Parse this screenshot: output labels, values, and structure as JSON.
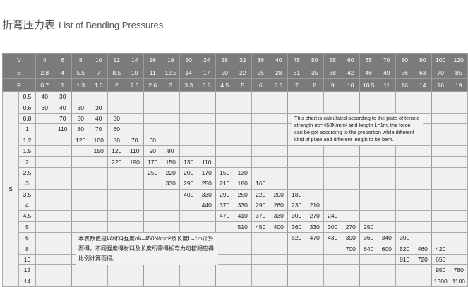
{
  "title": {
    "zh": "折弯压力表",
    "en": "List of Bending Pressures"
  },
  "header_rows": [
    {
      "label": "V",
      "values": [
        "4",
        "6",
        "8",
        "10",
        "12",
        "14",
        "16",
        "18",
        "20",
        "24",
        "28",
        "32",
        "36",
        "40",
        "45",
        "50",
        "55",
        "60",
        "65",
        "70",
        "80",
        "90",
        "100",
        "120"
      ]
    },
    {
      "label": "B",
      "values": [
        "2.8",
        "4",
        "5.5",
        "7",
        "8.5",
        "10",
        "11",
        "12.5",
        "14",
        "17",
        "20",
        "22",
        "25",
        "28",
        "31",
        "35",
        "38",
        "42",
        "46",
        "49",
        "56",
        "63",
        "70",
        "85"
      ]
    },
    {
      "label": "R",
      "values": [
        "0.7",
        "1",
        "1.3",
        "1.6",
        "2",
        "2.3",
        "2.6",
        "3",
        "3.3",
        "3.8",
        "4.5",
        "5",
        "6",
        "6.5",
        "7",
        "8",
        "9",
        "10",
        "10.5",
        "11",
        "16",
        "14",
        "16",
        "19"
      ]
    }
  ],
  "s_label": "S",
  "rows": [
    {
      "s": "0.5",
      "cells": [
        "40",
        "30",
        "",
        "",
        "",
        "",
        "",
        "",
        "",
        "",
        "",
        "",
        "",
        "",
        "",
        "",
        "",
        "",
        "",
        "",
        "",
        "",
        "",
        ""
      ]
    },
    {
      "s": "0.6",
      "cells": [
        "60",
        "40",
        "30",
        "30",
        "",
        "",
        "",
        "",
        "",
        "",
        "",
        "",
        "",
        "",
        "",
        "",
        "",
        "",
        "",
        "",
        "",
        "",
        "",
        ""
      ]
    },
    {
      "s": "0.8",
      "cells": [
        "",
        "70",
        "50",
        "40",
        "30",
        "",
        "",
        "",
        "",
        "",
        "",
        "",
        "",
        "",
        "",
        "",
        "",
        "",
        "",
        "",
        "",
        "",
        "",
        ""
      ]
    },
    {
      "s": "1",
      "cells": [
        "",
        "110",
        "80",
        "70",
        "60",
        "",
        "",
        "",
        "",
        "",
        "",
        "",
        "",
        "",
        "",
        "",
        "",
        "",
        "",
        "",
        "",
        "",
        "",
        ""
      ]
    },
    {
      "s": "1.2",
      "cells": [
        "",
        "",
        "120",
        "100",
        "80",
        "70",
        "60",
        "",
        "",
        "",
        "",
        "",
        "",
        "",
        "",
        "",
        "",
        "",
        "",
        "",
        "",
        "",
        "",
        ""
      ]
    },
    {
      "s": "1.5",
      "cells": [
        "",
        "",
        "",
        "150",
        "120",
        "110",
        "90",
        "80",
        "",
        "",
        "",
        "",
        "",
        "",
        "",
        "",
        "",
        "",
        "",
        "",
        "",
        "",
        "",
        ""
      ]
    },
    {
      "s": "2",
      "cells": [
        "",
        "",
        "",
        "",
        "220",
        "190",
        "170",
        "150",
        "130",
        "110",
        "",
        "",
        "",
        "",
        "",
        "",
        "",
        "",
        "",
        "",
        "",
        "",
        "",
        ""
      ]
    },
    {
      "s": "2.5",
      "cells": [
        "",
        "",
        "",
        "",
        "",
        "",
        "250",
        "220",
        "200",
        "170",
        "150",
        "130",
        "",
        "",
        "",
        "",
        "",
        "",
        "",
        "",
        "",
        "",
        "",
        ""
      ]
    },
    {
      "s": "3",
      "cells": [
        "",
        "",
        "",
        "",
        "",
        "",
        "",
        "330",
        "290",
        "250",
        "210",
        "180",
        "160",
        "",
        "",
        "",
        "",
        "",
        "",
        "",
        "",
        "",
        "",
        ""
      ]
    },
    {
      "s": "3.5",
      "cells": [
        "",
        "",
        "",
        "",
        "",
        "",
        "",
        "",
        "400",
        "330",
        "290",
        "250",
        "220",
        "200",
        "180",
        "",
        "",
        "",
        "",
        "",
        "",
        "",
        "",
        ""
      ]
    },
    {
      "s": "4",
      "cells": [
        "",
        "",
        "",
        "",
        "",
        "",
        "",
        "",
        "",
        "440",
        "370",
        "330",
        "290",
        "260",
        "230",
        "210",
        "",
        "",
        "",
        "",
        "",
        "",
        "",
        ""
      ]
    },
    {
      "s": "4.5",
      "cells": [
        "",
        "",
        "",
        "",
        "",
        "",
        "",
        "",
        "",
        "",
        "470",
        "410",
        "370",
        "330",
        "300",
        "270",
        "240",
        "",
        "",
        "",
        "",
        "",
        "",
        ""
      ]
    },
    {
      "s": "5",
      "cells": [
        "",
        "",
        "",
        "",
        "",
        "",
        "",
        "",
        "",
        "",
        "",
        "510",
        "450",
        "400",
        "360",
        "330",
        "300",
        "270",
        "250",
        "",
        "",
        "",
        "",
        ""
      ]
    },
    {
      "s": "6",
      "cells": [
        "",
        "",
        "",
        "",
        "",
        "",
        "",
        "",
        "",
        "",
        "",
        "",
        "",
        "",
        "520",
        "470",
        "430",
        "390",
        "360",
        "340",
        "300",
        "",
        "",
        ""
      ]
    },
    {
      "s": "8",
      "cells": [
        "",
        "",
        "",
        "",
        "",
        "",
        "",
        "",
        "",
        "",
        "",
        "",
        "",
        "",
        "",
        "",
        "",
        "700",
        "640",
        "600",
        "520",
        "460",
        "420",
        ""
      ]
    },
    {
      "s": "10",
      "cells": [
        "",
        "",
        "",
        "",
        "",
        "",
        "",
        "",
        "",
        "",
        "",
        "",
        "",
        "",
        "",
        "",
        "",
        "",
        "",
        "",
        "810",
        "720",
        "650",
        ""
      ]
    },
    {
      "s": "12",
      "cells": [
        "",
        "",
        "",
        "",
        "",
        "",
        "",
        "",
        "",
        "",
        "",
        "",
        "",
        "",
        "",
        "",
        "",
        "",
        "",
        "",
        "",
        "",
        "950",
        "780"
      ]
    },
    {
      "s": "14",
      "cells": [
        "",
        "",
        "",
        "",
        "",
        "",
        "",
        "",
        "",
        "",
        "",
        "",
        "",
        "",
        "",
        "",
        "",
        "",
        "",
        "",
        "",
        "",
        "1300",
        "1100"
      ]
    }
  ],
  "notes": {
    "en": "This chart is calculated according to the plate of tensile strength σb=450N/mm² and length L=1m, the force can be got according to the proportion while different kind of plate and different length to be bent.",
    "zh": "本表数值是以材料强度σb=450N/mm²及长度L=1m计算而得，不同强度得材料及长度所需得折弯力可按相应得比例计算而得。"
  },
  "colors": {
    "header_bg": "#7b7b7b",
    "body_bg": "#f0f0f0",
    "grid": "#aaaaaa"
  }
}
